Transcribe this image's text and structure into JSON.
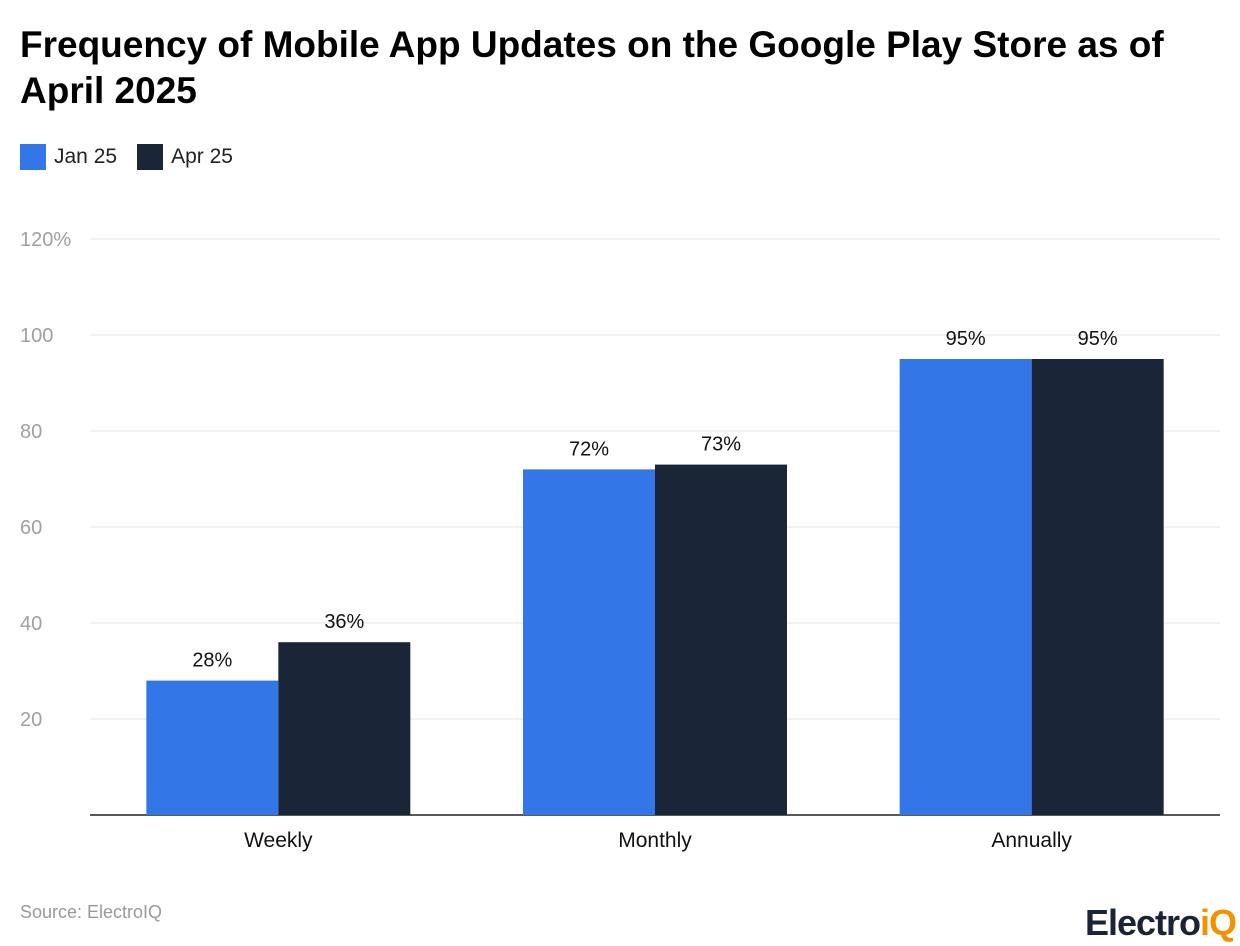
{
  "title": "Frequency of Mobile App Updates on the Google Play Store as of April 2025",
  "source": "Source: ElectroIQ",
  "logo": {
    "main": "Electro",
    "accent": "iQ"
  },
  "chart_data": {
    "type": "bar",
    "title": "Frequency of Mobile App Updates on the Google Play Store as of April 2025",
    "categories": [
      "Weekly",
      "Monthly",
      "Annually"
    ],
    "series": [
      {
        "name": "Jan 25",
        "values": [
          28,
          72,
          95
        ],
        "color": "#3376e8"
      },
      {
        "name": "Apr 25",
        "values": [
          36,
          73,
          95
        ],
        "color": "#1b2538"
      }
    ],
    "ylim": [
      0,
      120
    ],
    "yticks": [
      20,
      40,
      60,
      80,
      100,
      120
    ],
    "ytick_labels": [
      "20",
      "40",
      "60",
      "80",
      "100",
      "120%"
    ],
    "data_labels": [
      [
        "28%",
        "72%",
        "95%"
      ],
      [
        "36%",
        "73%",
        "95%"
      ]
    ],
    "grid": true,
    "legend": "top-left"
  }
}
